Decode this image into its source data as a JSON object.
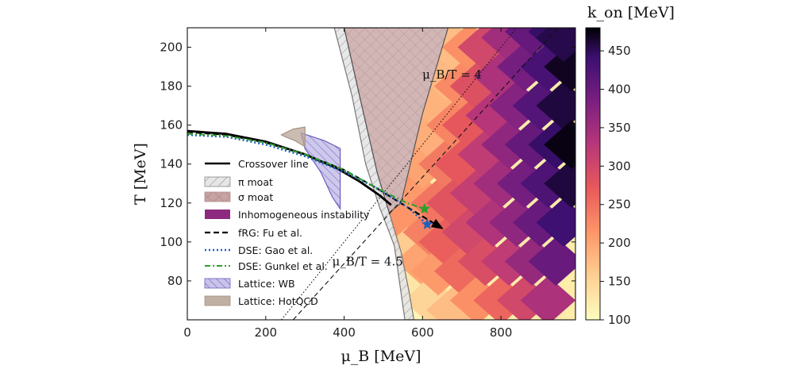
{
  "chart_data": {
    "type": "heatmap",
    "title": "",
    "xlabel": "μ_B [MeV]",
    "ylabel": "T [MeV]",
    "xlim": [
      0,
      990
    ],
    "ylim": [
      60,
      210
    ],
    "x_ticks": [
      "0",
      "200",
      "400",
      "600",
      "800"
    ],
    "y_ticks": [
      "80",
      "100",
      "120",
      "140",
      "160",
      "180",
      "200"
    ],
    "colorbar": {
      "label": "k_on [MeV]",
      "range": [
        100,
        480
      ],
      "ticks": [
        "100",
        "150",
        "200",
        "250",
        "300",
        "350",
        "400",
        "450"
      ],
      "colormap": "magma_r"
    },
    "annotations": [
      {
        "text": "μ_B/T = 4",
        "x": 640,
        "y": 186
      },
      {
        "text": "μ_B/T = 4.5",
        "x": 410,
        "y": 90
      }
    ],
    "series": [
      {
        "name": "Crossover line",
        "style": "solid-black",
        "points": [
          [
            0,
            157
          ],
          [
            100,
            155.5
          ],
          [
            200,
            151.5
          ],
          [
            300,
            145
          ],
          [
            380,
            138
          ],
          [
            440,
            131
          ],
          [
            490,
            124
          ],
          [
            520,
            119
          ]
        ]
      },
      {
        "name": "fRG: Fu et al.",
        "style": "dashed-black",
        "points": [
          [
            0,
            156.5
          ],
          [
            100,
            155
          ],
          [
            200,
            151
          ],
          [
            300,
            145
          ],
          [
            400,
            137
          ],
          [
            480,
            128
          ],
          [
            560,
            118
          ],
          [
            650,
            107
          ]
        ]
      },
      {
        "name": "DSE: Gao et al.",
        "style": "dotted-blue",
        "points": [
          [
            0,
            155
          ],
          [
            100,
            154
          ],
          [
            200,
            150
          ],
          [
            300,
            144
          ],
          [
            400,
            136
          ],
          [
            480,
            128
          ],
          [
            560,
            118
          ],
          [
            612,
            109
          ]
        ]
      },
      {
        "name": "DSE: Gunkel et al.",
        "style": "dashdot-green",
        "points": [
          [
            0,
            155.5
          ],
          [
            100,
            154.5
          ],
          [
            200,
            151
          ],
          [
            300,
            145
          ],
          [
            400,
            137
          ],
          [
            480,
            128
          ],
          [
            560,
            120
          ],
          [
            605,
            117
          ]
        ]
      }
    ],
    "critical_points": [
      {
        "name": "Gunkel et al. CEP",
        "mu": 605,
        "T": 117,
        "color": "#2ca02c"
      },
      {
        "name": "Gao et al. CEP",
        "mu": 612,
        "T": 109,
        "color": "#1f5fbf"
      }
    ],
    "regions": [
      {
        "name": "π moat",
        "color": "#aaaaaa",
        "points": [
          [
            375,
            210
          ],
          [
            400,
            210
          ],
          [
            445,
            170
          ],
          [
            485,
            135
          ],
          [
            515,
            115
          ],
          [
            545,
            95
          ],
          [
            565,
            75
          ],
          [
            578,
            60
          ],
          [
            555,
            60
          ],
          [
            528,
            98
          ],
          [
            515,
            105
          ],
          [
            490,
            118
          ],
          [
            455,
            140
          ],
          [
            420,
            175
          ]
        ]
      },
      {
        "name": "σ moat",
        "color": "#b58c8c",
        "points": [
          [
            400,
            210
          ],
          [
            665,
            210
          ],
          [
            600,
            166
          ],
          [
            545,
            120
          ],
          [
            515,
            115
          ],
          [
            485,
            135
          ],
          [
            445,
            170
          ]
        ]
      },
      {
        "name": "Lattice: WB",
        "color": "#7b6fc5",
        "points": [
          [
            290,
            156
          ],
          [
            350,
            152
          ],
          [
            390,
            148
          ],
          [
            390,
            117
          ],
          [
            370,
            123
          ],
          [
            340,
            136
          ],
          [
            300,
            148
          ]
        ]
      },
      {
        "name": "Lattice: HotQCD",
        "color": "#a89283",
        "points": [
          [
            240,
            155
          ],
          [
            270,
            158
          ],
          [
            300,
            159
          ],
          [
            300,
            149
          ],
          [
            275,
            152
          ],
          [
            250,
            154
          ]
        ]
      }
    ],
    "instability_boundary": [
      [
        665,
        210
      ],
      [
        600,
        166
      ],
      [
        545,
        120
      ],
      [
        515,
        115
      ],
      [
        528,
        98
      ],
      [
        555,
        60
      ],
      [
        990,
        60
      ],
      [
        990,
        210
      ]
    ],
    "heatmap_cells": [
      [
        540,
        120,
        190
      ],
      [
        560,
        135,
        175
      ],
      [
        580,
        150,
        165
      ],
      [
        600,
        165,
        160
      ],
      [
        620,
        178,
        155
      ],
      [
        640,
        192,
        150
      ],
      [
        655,
        204,
        140
      ],
      [
        560,
        110,
        215
      ],
      [
        580,
        125,
        210
      ],
      [
        600,
        140,
        200
      ],
      [
        620,
        155,
        190
      ],
      [
        640,
        170,
        185
      ],
      [
        660,
        185,
        180
      ],
      [
        680,
        200,
        175
      ],
      [
        560,
        95,
        160
      ],
      [
        575,
        80,
        130
      ],
      [
        590,
        65,
        110
      ],
      [
        600,
        90,
        200
      ],
      [
        620,
        105,
        235
      ],
      [
        640,
        120,
        245
      ],
      [
        660,
        140,
        240
      ],
      [
        680,
        160,
        230
      ],
      [
        700,
        180,
        225
      ],
      [
        720,
        200,
        220
      ],
      [
        620,
        70,
        150
      ],
      [
        640,
        85,
        210
      ],
      [
        660,
        100,
        265
      ],
      [
        680,
        120,
        280
      ],
      [
        700,
        140,
        275
      ],
      [
        720,
        160,
        275
      ],
      [
        740,
        180,
        285
      ],
      [
        760,
        200,
        300
      ],
      [
        680,
        65,
        175
      ],
      [
        700,
        85,
        255
      ],
      [
        720,
        105,
        300
      ],
      [
        740,
        125,
        315
      ],
      [
        760,
        145,
        320
      ],
      [
        780,
        165,
        330
      ],
      [
        800,
        185,
        340
      ],
      [
        820,
        205,
        350
      ],
      [
        740,
        70,
        220
      ],
      [
        760,
        90,
        290
      ],
      [
        780,
        110,
        335
      ],
      [
        800,
        130,
        350
      ],
      [
        820,
        150,
        365
      ],
      [
        840,
        170,
        375
      ],
      [
        860,
        190,
        390
      ],
      [
        880,
        208,
        405
      ],
      [
        800,
        70,
        260
      ],
      [
        820,
        90,
        320
      ],
      [
        840,
        110,
        365
      ],
      [
        860,
        130,
        390
      ],
      [
        880,
        150,
        405
      ],
      [
        900,
        170,
        420
      ],
      [
        920,
        190,
        430
      ],
      [
        940,
        208,
        445
      ],
      [
        860,
        70,
        300
      ],
      [
        880,
        90,
        360
      ],
      [
        900,
        110,
        400
      ],
      [
        920,
        130,
        425
      ],
      [
        940,
        150,
        445
      ],
      [
        960,
        170,
        460
      ],
      [
        980,
        190,
        470
      ],
      [
        920,
        70,
        340
      ],
      [
        940,
        90,
        400
      ],
      [
        960,
        110,
        440
      ],
      [
        980,
        130,
        460
      ],
      [
        980,
        150,
        475
      ],
      [
        960,
        205,
        455
      ]
    ],
    "legend": {
      "position": "center-left",
      "entries": [
        "Crossover line",
        "π moat",
        "σ moat",
        "Inhomogeneous instability",
        "fRG: Fu et al.",
        "DSE: Gao et al.",
        "DSE: Gunkel et al.",
        "Lattice: WB",
        "Lattice: HotQCD"
      ]
    }
  }
}
